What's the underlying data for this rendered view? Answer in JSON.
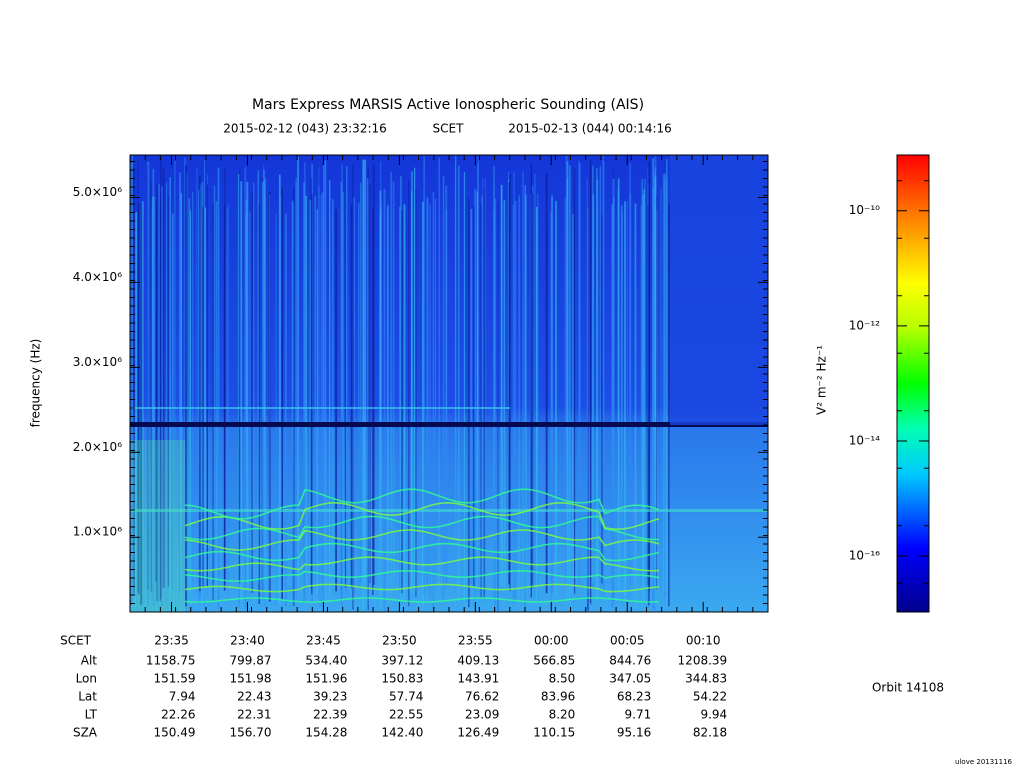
{
  "chart_data": {
    "type": "spectrogram",
    "title": "Mars Express MARSIS Active Ionospheric Sounding (AIS)",
    "subtitle": [
      "2015-02-12 (043) 23:32:16",
      "SCET",
      "2015-02-13 (044) 00:14:16"
    ],
    "ylabel": "frequency (Hz)",
    "xlim": [
      "2015-02-12 23:32:16",
      "2015-02-13 00:14:16"
    ],
    "xticks": [
      {
        "value": "2015-02-12 23:35",
        "label": "23:35"
      },
      {
        "value": "2015-02-12 23:40",
        "label": "23:40"
      },
      {
        "value": "2015-02-12 23:45",
        "label": "23:45"
      },
      {
        "value": "2015-02-12 23:50",
        "label": "23:50"
      },
      {
        "value": "2015-02-12 23:55",
        "label": "23:55"
      },
      {
        "value": "2015-02-13 00:00",
        "label": "00:00"
      },
      {
        "value": "2015-02-13 00:05",
        "label": "00:05"
      },
      {
        "value": "2015-02-13 00:10",
        "label": "00:10"
      }
    ],
    "ylim": [
      120000,
      5500000
    ],
    "yticks": [
      {
        "value": 1000000,
        "label": "1.0×10⁶"
      },
      {
        "value": 2000000,
        "label": "2.0×10⁶"
      },
      {
        "value": 3000000,
        "label": "3.0×10⁶"
      },
      {
        "value": 4000000,
        "label": "4.0×10⁶"
      },
      {
        "value": 5000000,
        "label": "5.0×10⁶"
      }
    ],
    "colorbar": {
      "label": "V² m⁻² Hz⁻¹",
      "log": true,
      "zlim": [
        1.07e-17,
        9.3e-10
      ],
      "ticks": [
        {
          "value": 1e-10,
          "label": "10⁻¹⁰"
        },
        {
          "value": 1e-12,
          "label": "10⁻¹²"
        },
        {
          "value": 1e-14,
          "label": "10⁻¹⁴"
        },
        {
          "value": 1e-16,
          "label": "10⁻¹⁶"
        }
      ]
    },
    "ephemeris": {
      "header": "SCET",
      "rows": [
        {
          "label": "Alt",
          "values": [
            "1158.75",
            "799.87",
            "534.40",
            "397.12",
            "409.13",
            "566.85",
            "844.76",
            "1208.39"
          ]
        },
        {
          "label": "Lon",
          "values": [
            "151.59",
            "151.98",
            "151.96",
            "150.83",
            "143.91",
            "8.50",
            "347.05",
            "344.83"
          ]
        },
        {
          "label": "Lat",
          "values": [
            "7.94",
            "22.43",
            "39.23",
            "57.74",
            "76.62",
            "83.96",
            "68.23",
            "54.22"
          ]
        },
        {
          "label": "LT",
          "values": [
            "22.26",
            "22.31",
            "22.39",
            "22.55",
            "23.09",
            "8.20",
            "9.71",
            "9.94"
          ]
        },
        {
          "label": "SZA",
          "values": [
            "150.49",
            "156.70",
            "154.28",
            "142.40",
            "126.49",
            "110.15",
            "95.16",
            "82.18"
          ]
        }
      ]
    },
    "orbit": "Orbit 14108",
    "footer": "ulove 20131116"
  }
}
